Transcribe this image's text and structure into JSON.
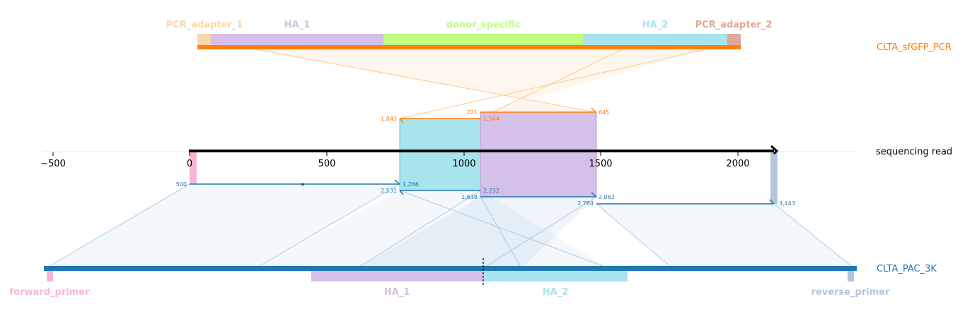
{
  "colors": {
    "pcr_track": "#ff7f0e",
    "pac_track": "#1f77b4",
    "read_track": "#000000",
    "pcr_adapter_1": "#f9d6ab",
    "ha_1": "#d4c0e8",
    "donor_specific": "#c0ff80",
    "ha_2": "#a8e4ec",
    "pcr_adapter_2": "#e0a898",
    "forward_primer": "#f7b6d9",
    "reverse_primer": "#b4c4dc"
  },
  "tracks": {
    "pcr": "CLTA_sfGFP_PCR",
    "read": "sequencing read",
    "pac": "CLTA_PAC_3K"
  },
  "pcr_features": {
    "pcr_adapter_1": "PCR_adapter_1",
    "ha_1": "HA_1",
    "donor_specific": "donor_specific",
    "ha_2": "HA_2",
    "pcr_adapter_2": "PCR_adapter_2"
  },
  "pac_features": {
    "forward_primer": "forward_primer",
    "ha_1": "HA_1",
    "ha_2": "HA_2",
    "reverse_primer": "reverse_primer"
  },
  "read_axis": {
    "ticks": [
      "−500",
      "0",
      "500",
      "1000",
      "1500",
      "2000"
    ]
  },
  "pcr_alignment_coords": {
    "upper_start": "221",
    "upper_end": "645",
    "lower_start": "1,843",
    "lower_end": "1,544"
  },
  "pac_alignment_coords": {
    "a_start": "500",
    "a_end": "1,266",
    "b_start": "2,531",
    "b_end": "2,232",
    "c_start": "1,638",
    "c_end": "2,062",
    "d_start": "2,784",
    "d_end": "3,443"
  }
}
